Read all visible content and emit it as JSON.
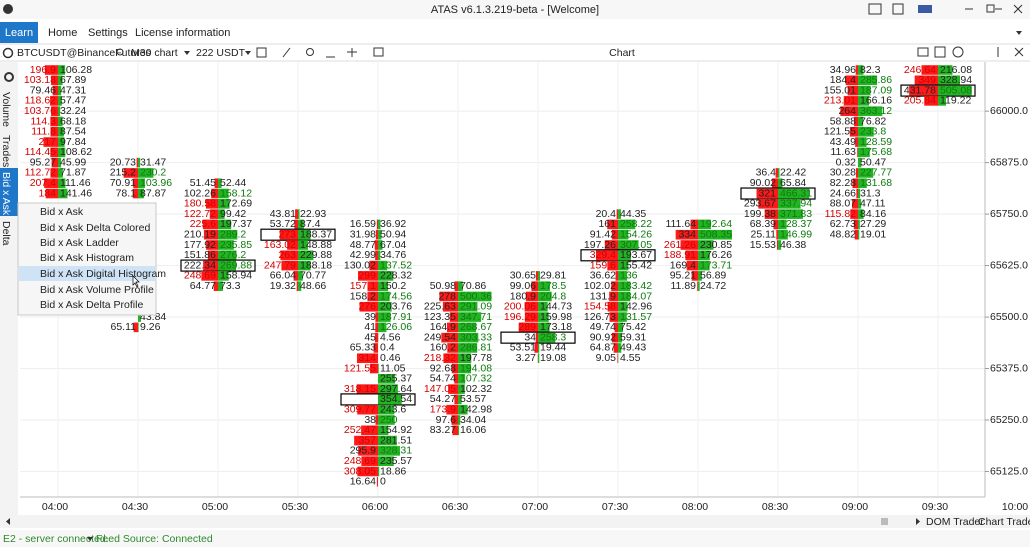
{
  "window": {
    "title": "ATAS v6.1.3.219-beta - [Welcome]"
  },
  "nav": {
    "tabs": [
      "Learn",
      "Home",
      "Settings",
      "License information"
    ],
    "active": 0
  },
  "toolbar": {
    "instrument": "BTCUSDT@BinanceFutures",
    "timeframe": "M30 chart",
    "volume": "222 USDT",
    "panel_title": "Chart"
  },
  "sidebar": {
    "tabs": [
      "Volume",
      "Trades",
      "Bid x Ask",
      "Delta"
    ],
    "active": 2
  },
  "menu": {
    "items": [
      "Bid x Ask",
      "Bid x Ask Delta Colored",
      "Bid x Ask Ladder",
      "Bid x Ask Histogram",
      "Bid x Ask Digital Histogram",
      "Bid x Ask Volume Profile",
      "Bid x Ask Delta Profile"
    ],
    "selected": 4
  },
  "chart_data": {
    "type": "footprint",
    "categories": [
      "04:00",
      "04:30",
      "05:00",
      "05:30",
      "06:00",
      "06:30",
      "07:00",
      "07:30",
      "08:00",
      "08:30",
      "09:00",
      "09:30",
      "10:00"
    ],
    "ylim": [
      65063,
      66117
    ],
    "price_step": 25,
    "grid": true,
    "yticks": [
      {
        "value": 66000,
        "label": "66000.0"
      },
      {
        "value": 65875,
        "label": "65875.0"
      },
      {
        "value": 65750,
        "label": "65750.0"
      },
      {
        "value": 65625,
        "label": "65625.0"
      },
      {
        "value": 65500,
        "label": "65500.0"
      },
      {
        "value": 65375,
        "label": "65375.0"
      },
      {
        "value": 65250,
        "label": "65250.0"
      },
      {
        "value": 65125,
        "label": "65125.0"
      }
    ],
    "columns": [
      {
        "high": 66100,
        "rows": [
          [
            196.9,
            106.28
          ],
          [
            103.18,
            67.89
          ],
          [
            79.46,
            47.31
          ],
          [
            118.62,
            57.47
          ],
          [
            103.76,
            32.24
          ],
          [
            114.3,
            68.18
          ],
          [
            111.8,
            87.54
          ],
          [
            217,
            97.84
          ],
          [
            114.45,
            108.62
          ],
          [
            95.27,
            45.99
          ],
          [
            112.72,
            71.87
          ],
          [
            207.4,
            111.46
          ],
          [
            184,
            141.46
          ]
        ]
      },
      {
        "high": 65875,
        "rows": [
          [
            20.73,
            31.47
          ],
          [
            215.2,
            230.2
          ],
          [
            70.91,
            103.96
          ],
          [
            78.1,
            87.87
          ],
          null,
          null,
          null,
          null,
          null,
          null,
          null,
          null,
          null,
          null,
          null,
          [
            null,
            43.84
          ],
          [
            65.11,
            9.26
          ]
        ]
      },
      {
        "high": 65825,
        "poc": 8,
        "rows": [
          [
            51.45,
            52.44
          ],
          [
            102.26,
            158.12
          ],
          [
            180.58,
            172.69
          ],
          [
            122.72,
            99.42
          ],
          [
            225.6,
            197.37
          ],
          [
            210.19,
            289.2
          ],
          [
            177.92,
            235.85
          ],
          [
            151.86,
            276.2
          ],
          [
            222.34,
            269.88
          ],
          [
            248.69,
            158.94
          ],
          [
            64.77,
            73.3
          ]
        ]
      },
      {
        "high": 65750,
        "poc": 2,
        "rows": [
          [
            43.81,
            22.93
          ],
          [
            53.72,
            87.4
          ],
          [
            273,
            188.37
          ],
          [
            163.02,
            148.88
          ],
          [
            263,
            229.88
          ],
          [
            247.79,
            188.18
          ],
          [
            66.04,
            70.77
          ],
          [
            19.32,
            48.66
          ]
        ]
      },
      {
        "high": 65725,
        "poc": 17,
        "rows": [
          [
            16.59,
            36.92
          ],
          [
            31.98,
            50.94
          ],
          [
            48.77,
            67.04
          ],
          [
            42.99,
            34.76
          ],
          [
            130.02,
            137.52
          ],
          [
            299,
            228.32
          ],
          [
            157.1,
            150.2
          ],
          [
            158.2,
            174.56
          ],
          [
            276,
            203.76
          ],
          [
            39,
            187.91
          ],
          [
            41,
            126.06
          ],
          [
            45,
            4.56
          ],
          [
            65.33,
            0.4
          ],
          [
            314,
            0.46
          ],
          [
            121.55,
            11.05
          ],
          [
            null,
            255.37
          ],
          [
            318.15,
            297.64
          ],
          [
            null,
            354.54
          ],
          [
            309.77,
            243.6
          ],
          [
            38,
            250
          ],
          [
            252.47,
            154.92
          ],
          [
            357,
            281.51
          ],
          [
            295.9,
            328.31
          ],
          [
            248.69,
            235.57
          ],
          [
            308.05,
            18.86
          ],
          [
            16.64,
            0
          ]
        ]
      },
      {
        "high": 65575,
        "rows": [
          [
            50.98,
            70.86
          ],
          [
            278,
            500.36
          ],
          [
            225.63,
            291.09
          ],
          [
            123.35,
            347.71
          ],
          [
            164.9,
            268.67
          ],
          [
            249.54,
            303.33
          ],
          [
            160.2,
            286.81
          ],
          [
            218.32,
            197.78
          ],
          [
            92.68,
            194.08
          ],
          [
            54.74,
            107.32
          ],
          [
            147.05,
            102.32
          ],
          [
            54.27,
            53.57
          ],
          [
            173.9,
            142.98
          ],
          [
            97.6,
            34.04
          ],
          [
            83.27,
            16.06
          ]
        ]
      },
      {
        "high": 65600,
        "poc": 6,
        "rows": [
          [
            30.65,
            29.81
          ],
          [
            99.06,
            178.5
          ],
          [
            180.9,
            204.8
          ],
          [
            200.06,
            144.73
          ],
          [
            196.29,
            159.98
          ],
          [
            289,
            173.18
          ],
          [
            34,
            258.3
          ],
          [
            53.51,
            19.44
          ],
          [
            3.27,
            19.08
          ]
        ]
      },
      {
        "high": 65750,
        "poc": 4,
        "rows": [
          [
            20.4,
            44.35
          ],
          [
            161,
            258.22
          ],
          [
            91.42,
            154.26
          ],
          [
            197.26,
            307.05
          ],
          [
            329.4,
            193.67
          ],
          [
            159.6,
            155.42
          ],
          [
            36.62,
            136
          ],
          [
            102.02,
            183.42
          ],
          [
            131.9,
            184.07
          ],
          [
            154.58,
            142.96
          ],
          [
            126.73,
            131.57
          ],
          [
            49.74,
            75.42
          ],
          [
            90.92,
            59.31
          ],
          [
            64.87,
            49.43
          ],
          [
            9.05,
            4.55
          ]
        ]
      },
      {
        "high": 65725,
        "rows": [
          [
            111.64,
            192.64
          ],
          [
            334,
            508.35
          ],
          [
            261.26,
            230.85
          ],
          [
            188.91,
            176.26
          ],
          [
            169.4,
            173.71
          ],
          [
            95.21,
            56.89
          ],
          [
            11.89,
            24.72
          ]
        ]
      },
      {
        "high": 65850,
        "poc": 2,
        "rows": [
          [
            36.4,
            22.42
          ],
          [
            90.02,
            65.84
          ],
          [
            321,
            466.31
          ],
          [
            293.67,
            337.94
          ],
          [
            199.38,
            371.83
          ],
          [
            68.39,
            128.37
          ],
          [
            25.11,
            146.99
          ],
          [
            15.53,
            46.38
          ]
        ]
      },
      {
        "high": 66100,
        "rows": [
          [
            34.96,
            82.3
          ],
          [
            184.4,
            285.86
          ],
          [
            155.01,
            187.09
          ],
          [
            213.01,
            166.16
          ],
          [
            264,
            363.12
          ],
          [
            58.88,
            76.82
          ],
          [
            121.55,
            233.8
          ],
          [
            43.49,
            128.59
          ],
          [
            11.63,
            175.68
          ],
          [
            0.32,
            50.47
          ],
          [
            30.28,
            227.77
          ],
          [
            82.28,
            131.68
          ],
          [
            24.66,
            31.3
          ],
          [
            88.07,
            47.11
          ],
          [
            115.82,
            84.16
          ],
          [
            62.73,
            27.29
          ],
          [
            48.82,
            19.01
          ]
        ]
      },
      {
        "high": 66100,
        "poc": 2,
        "rows": [
          [
            246.64,
            216.08
          ],
          [
            349,
            328.94
          ],
          [
            431.78,
            505.08
          ],
          [
            205.84,
            119.22
          ]
        ]
      },
      null
    ]
  },
  "bottom": {
    "buttons": [
      "DOM Trader",
      "Chart Trader"
    ]
  },
  "status": {
    "connection": "E2 - server connected.",
    "feed": "Feed Source: Connected"
  }
}
